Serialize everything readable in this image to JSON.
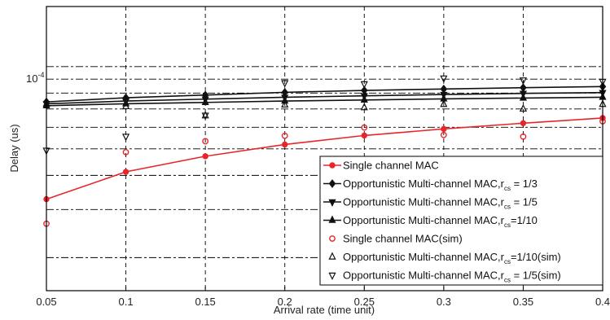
{
  "chart_data": {
    "type": "line",
    "title": "",
    "xlabel": "Arrival rate (time unit)",
    "ylabel": "Delay (us)",
    "x_ticks": [
      "0.05",
      "0.1",
      "0.15",
      "0.2",
      "0.25",
      "0.3",
      "0.35",
      "0.4"
    ],
    "y_tick_label": "10",
    "y_tick_exponent": "-4",
    "xlim": [
      0.05,
      0.4
    ],
    "y_scale": "log",
    "grid": "dashed",
    "legend_position": "bottom-right",
    "x": [
      0.05,
      0.1,
      0.15,
      0.2,
      0.25,
      0.3,
      0.35,
      0.4
    ],
    "series": [
      {
        "name": "Single channel MAC",
        "kind": "line",
        "marker": "dot",
        "color": "#e8262a",
        "values": [
          0.515,
          0.615,
          0.672,
          0.715,
          0.748,
          0.772,
          0.793,
          0.812
        ]
      },
      {
        "name": "Opportunistic Multi-channel MAC,r",
        "sub": "cs",
        "suffix": " = 1/3",
        "kind": "line",
        "marker": "diamond",
        "color": "#111111",
        "values": [
          0.871,
          0.886,
          0.896,
          0.906,
          0.913,
          0.918,
          0.923,
          0.927
        ]
      },
      {
        "name": "Opportunistic Multi-channel MAC,r",
        "sub": "cs",
        "suffix": " = 1/5",
        "kind": "line",
        "marker": "tri-down",
        "color": "#111111",
        "values": [
          0.864,
          0.874,
          0.881,
          0.888,
          0.893,
          0.898,
          0.902,
          0.905
        ]
      },
      {
        "name": "Opportunistic Multi-channel MAC,r",
        "sub": "cs",
        "suffix": "=1/10",
        "kind": "line",
        "marker": "tri-up",
        "color": "#111111",
        "values": [
          0.857,
          0.864,
          0.869,
          0.874,
          0.878,
          0.882,
          0.885,
          0.888
        ]
      },
      {
        "name": "Single channel MAC(sim)",
        "sub": "",
        "suffix": "",
        "kind": "markers",
        "marker": "circle",
        "color": "#e8262a",
        "values": [
          0.425,
          0.687,
          0.727,
          0.747,
          0.777,
          0.75,
          0.744,
          0.8
        ]
      },
      {
        "name": "Opportunistic Multi-channel MAC,r",
        "sub": "cs",
        "suffix": "=1/10(sim)",
        "kind": "markers",
        "marker": "tri-up",
        "color": "#111111",
        "values": [
          0.863,
          0.854,
          0.82,
          0.86,
          0.85,
          0.862,
          0.845,
          0.862
        ]
      },
      {
        "name": "Opportunistic Multi-channel MAC,r",
        "sub": "cs",
        "suffix": " = 1/5(sim)",
        "kind": "markers",
        "marker": "tri-down",
        "color": "#111111",
        "values": [
          0.694,
          0.745,
          0.822,
          0.941,
          0.937,
          0.958,
          0.951,
          0.946
        ]
      }
    ]
  }
}
